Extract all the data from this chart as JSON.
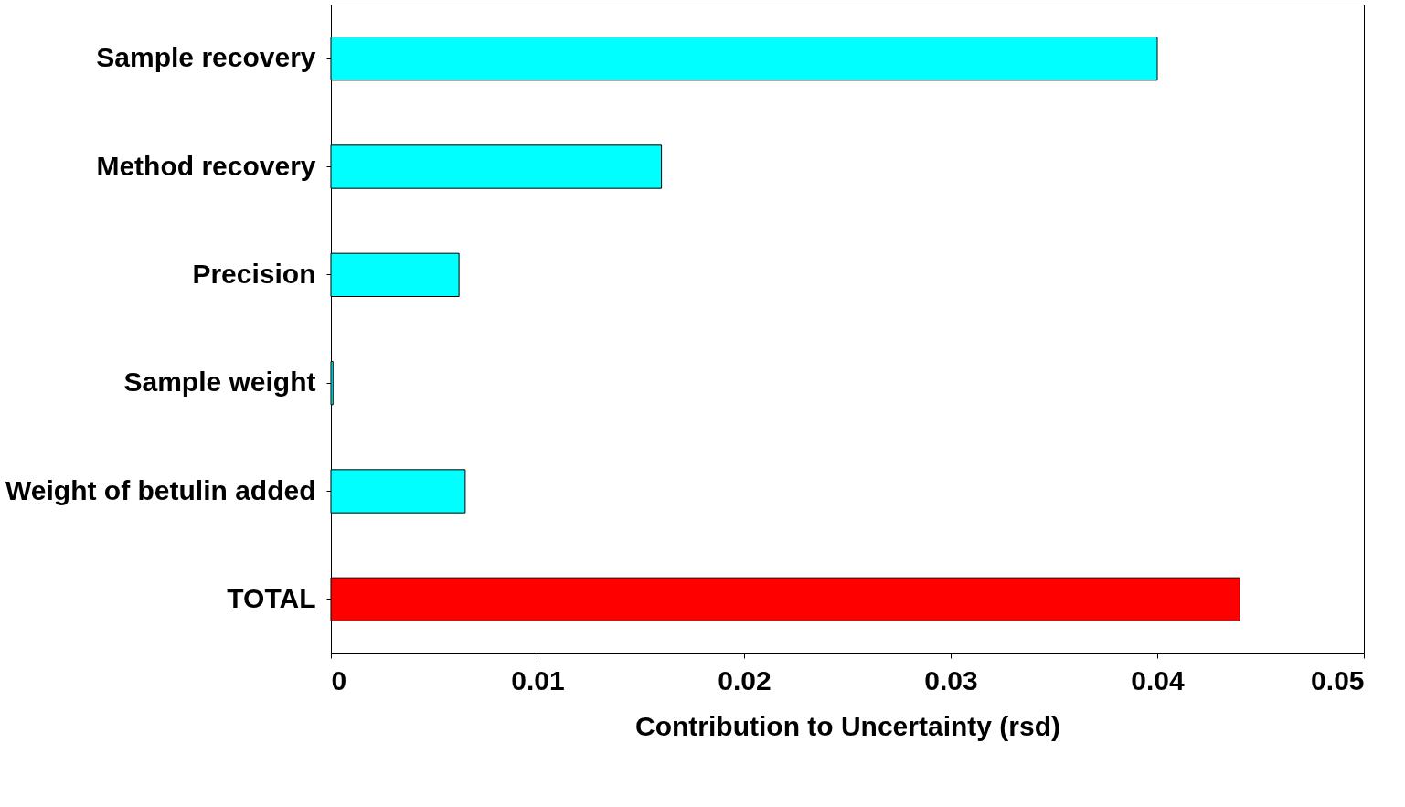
{
  "chart_data": {
    "type": "bar",
    "orientation": "horizontal",
    "xlabel": "Contribution to Uncertainty (rsd)",
    "categories": [
      "Sample recovery",
      "Method recovery",
      "Precision",
      "Sample weight",
      "Weight of betulin added",
      "TOTAL"
    ],
    "values": [
      0.04,
      0.016,
      0.0062,
      0.0001,
      0.0065,
      0.044
    ],
    "colors": [
      "#00ffff",
      "#00ffff",
      "#00ffff",
      "#00ffff",
      "#00ffff",
      "#ff0000"
    ],
    "xlim": [
      0,
      0.05
    ],
    "xticks": [
      0,
      0.01,
      0.02,
      0.03,
      0.04,
      0.05
    ],
    "grid": false
  }
}
